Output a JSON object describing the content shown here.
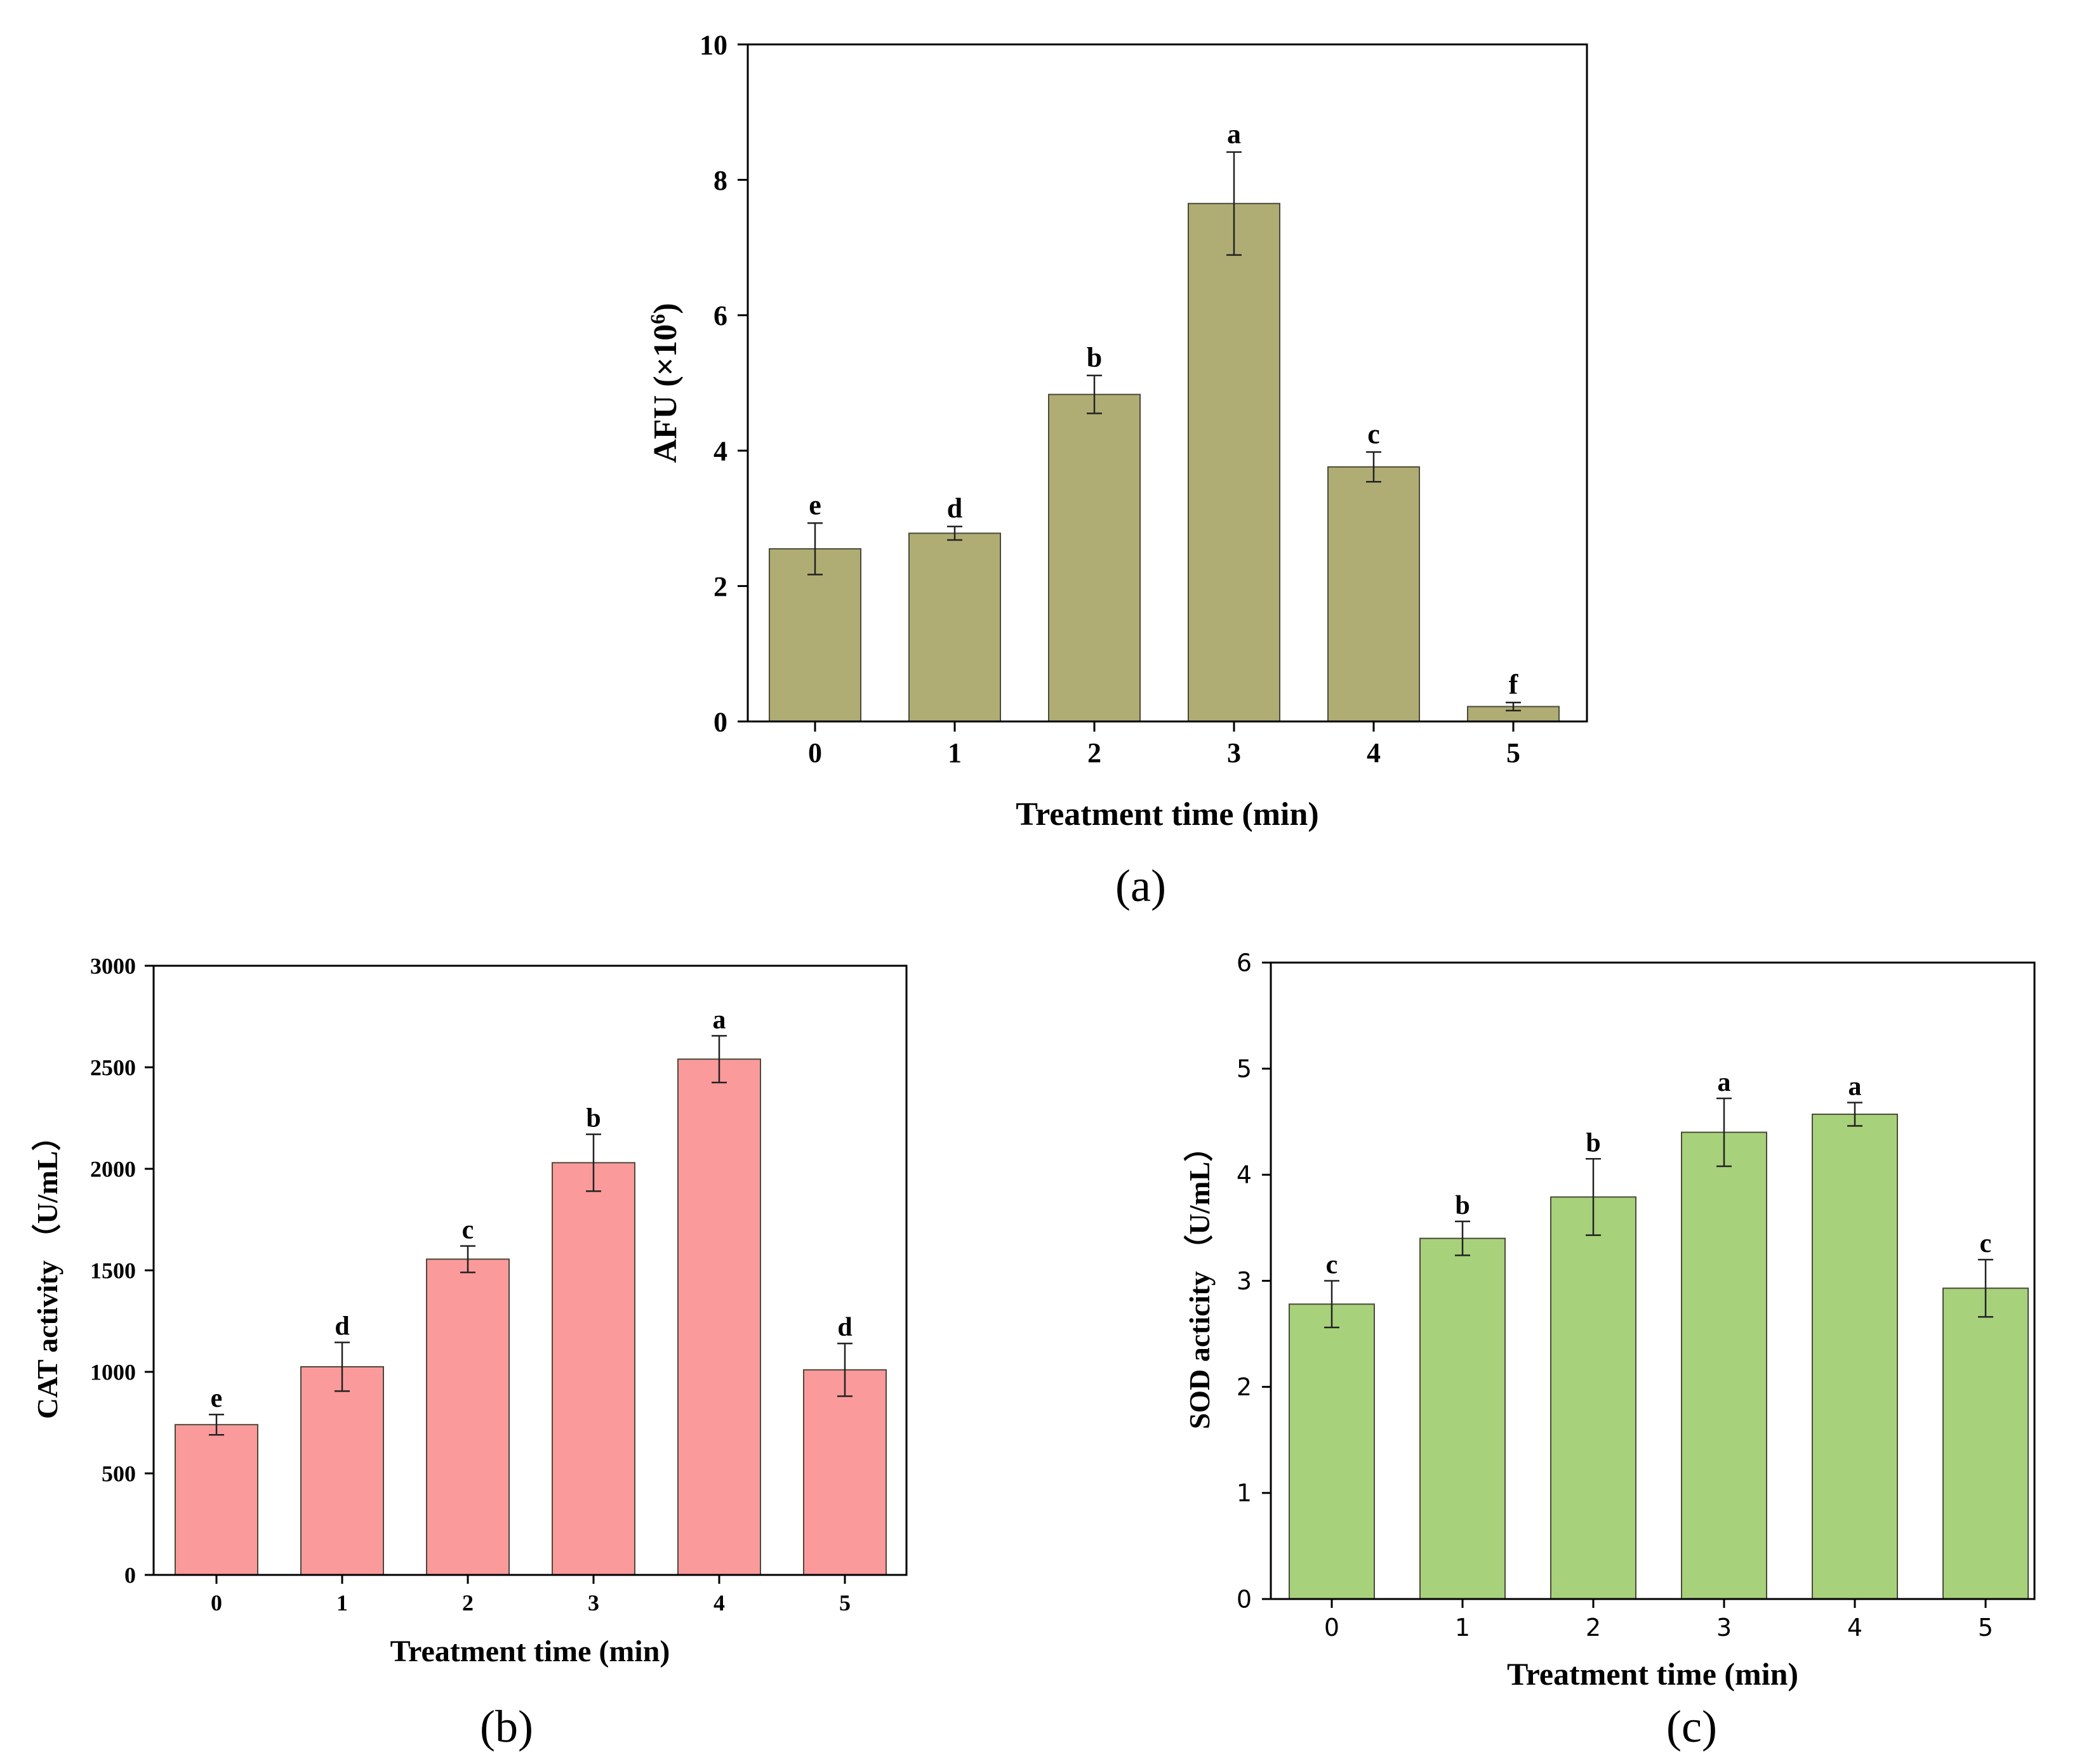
{
  "chart_data": [
    {
      "panel_label": "(a)",
      "type": "bar",
      "categories": [
        "0",
        "1",
        "2",
        "3",
        "4",
        "5"
      ],
      "values": [
        2.55,
        2.78,
        4.83,
        7.65,
        3.76,
        0.22
      ],
      "errors": [
        0.38,
        0.1,
        0.28,
        0.76,
        0.22,
        0.06
      ],
      "sig_letters": [
        "e",
        "d",
        "b",
        "a",
        "c",
        "f"
      ],
      "xlabel": "Treatment time (min)",
      "ylabel_base": "AFU (×10",
      "ylabel_sup": "6",
      "ylabel_close": ")",
      "ylim": [
        0,
        10
      ],
      "yticks": [
        0,
        2,
        4,
        6,
        8,
        10
      ],
      "bar_color": "#b0ad74"
    },
    {
      "panel_label": "(b)",
      "type": "bar",
      "categories": [
        "0",
        "1",
        "2",
        "3",
        "4",
        "5"
      ],
      "values": [
        740,
        1025,
        1555,
        2030,
        2540,
        1010
      ],
      "errors": [
        50,
        120,
        65,
        140,
        115,
        130
      ],
      "sig_letters": [
        "e",
        "d",
        "c",
        "b",
        "a",
        "d"
      ],
      "xlabel": "Treatment time (min)",
      "ylabel": "CAT activity （U/mL）",
      "ylim": [
        0,
        3000
      ],
      "yticks": [
        0,
        500,
        1000,
        1500,
        2000,
        2500,
        3000
      ],
      "bar_color": "#fb9a9b"
    },
    {
      "panel_label": "(c)",
      "type": "bar",
      "categories": [
        "0",
        "1",
        "2",
        "3",
        "4",
        "5"
      ],
      "values": [
        2.78,
        3.4,
        3.79,
        4.4,
        4.57,
        2.93
      ],
      "errors": [
        0.22,
        0.16,
        0.36,
        0.32,
        0.11,
        0.27
      ],
      "sig_letters": [
        "c",
        "b",
        "b",
        "a",
        "a",
        "c"
      ],
      "xlabel": "Treatment time (min)",
      "ylabel": "SOD acticity （U/mL）",
      "ylim": [
        0,
        6
      ],
      "yticks": [
        0,
        1,
        2,
        3,
        4,
        5,
        6
      ],
      "bar_color": "#a8d17b"
    }
  ]
}
